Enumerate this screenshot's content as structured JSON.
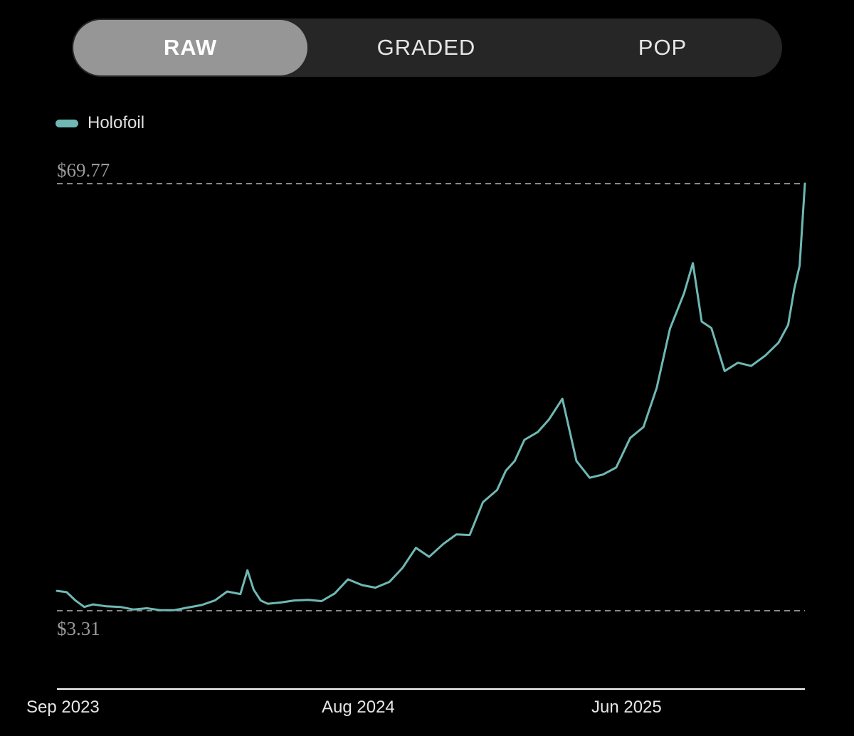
{
  "tabs": [
    {
      "label": "RAW",
      "active": true
    },
    {
      "label": "GRADED",
      "active": false
    },
    {
      "label": "POP",
      "active": false
    }
  ],
  "colors": {
    "line": "#6fb8b4",
    "reference_line": "#8a8a8a",
    "axis": "#ffffff",
    "tab_active": "#969696",
    "tab_bar": "#262626"
  },
  "chart_data": {
    "type": "line",
    "title": "",
    "xlabel": "",
    "ylabel": "",
    "legend": "top-left",
    "max_label": "$69.77",
    "min_label": "$3.31",
    "ylim": [
      3.31,
      69.77
    ],
    "xlim": [
      "2023-08-25",
      "2025-12-20"
    ],
    "x_ticks": [
      {
        "label": "Sep 2023",
        "date": "2023-09-01"
      },
      {
        "label": "Aug 2024",
        "date": "2024-08-01"
      },
      {
        "label": "Jun 2025",
        "date": "2025-06-01"
      }
    ],
    "series": [
      {
        "name": "Holofoil",
        "x": [
          "2023-08-25",
          "2023-09-05",
          "2023-09-15",
          "2023-09-25",
          "2023-10-05",
          "2023-10-20",
          "2023-11-05",
          "2023-11-20",
          "2023-12-05",
          "2023-12-20",
          "2024-01-05",
          "2024-01-20",
          "2024-02-05",
          "2024-02-20",
          "2024-03-05",
          "2024-03-20",
          "2024-03-28",
          "2024-04-04",
          "2024-04-12",
          "2024-04-20",
          "2024-05-05",
          "2024-05-20",
          "2024-06-05",
          "2024-06-20",
          "2024-07-05",
          "2024-07-20",
          "2024-08-05",
          "2024-08-20",
          "2024-09-05",
          "2024-09-20",
          "2024-10-05",
          "2024-10-20",
          "2024-11-05",
          "2024-11-20",
          "2024-12-05",
          "2024-12-20",
          "2025-01-05",
          "2025-01-15",
          "2025-01-25",
          "2025-02-05",
          "2025-02-20",
          "2025-03-05",
          "2025-03-20",
          "2025-04-05",
          "2025-04-20",
          "2025-05-05",
          "2025-05-20",
          "2025-06-05",
          "2025-06-20",
          "2025-07-05",
          "2025-07-20",
          "2025-08-05",
          "2025-08-15",
          "2025-08-25",
          "2025-09-05",
          "2025-09-20",
          "2025-10-05",
          "2025-10-20",
          "2025-11-05",
          "2025-11-20",
          "2025-12-01",
          "2025-12-08",
          "2025-12-14",
          "2025-12-20"
        ],
        "values": [
          6.4,
          6.2,
          4.9,
          3.9,
          4.3,
          4.0,
          3.9,
          3.5,
          3.7,
          3.4,
          3.4,
          3.8,
          4.2,
          4.9,
          6.3,
          5.9,
          9.6,
          6.6,
          4.9,
          4.4,
          4.6,
          4.9,
          5.0,
          4.8,
          6.0,
          8.2,
          7.3,
          6.9,
          7.8,
          10.0,
          13.1,
          11.7,
          13.7,
          15.2,
          15.1,
          20.2,
          22.1,
          25.1,
          26.6,
          29.9,
          31.1,
          33.1,
          36.3,
          26.6,
          24.0,
          24.5,
          25.6,
          30.2,
          31.9,
          38.0,
          47.2,
          52.7,
          57.4,
          48.3,
          47.3,
          40.6,
          41.9,
          41.4,
          43.0,
          45.0,
          47.8,
          53.4,
          57.0,
          69.77
        ]
      }
    ]
  }
}
